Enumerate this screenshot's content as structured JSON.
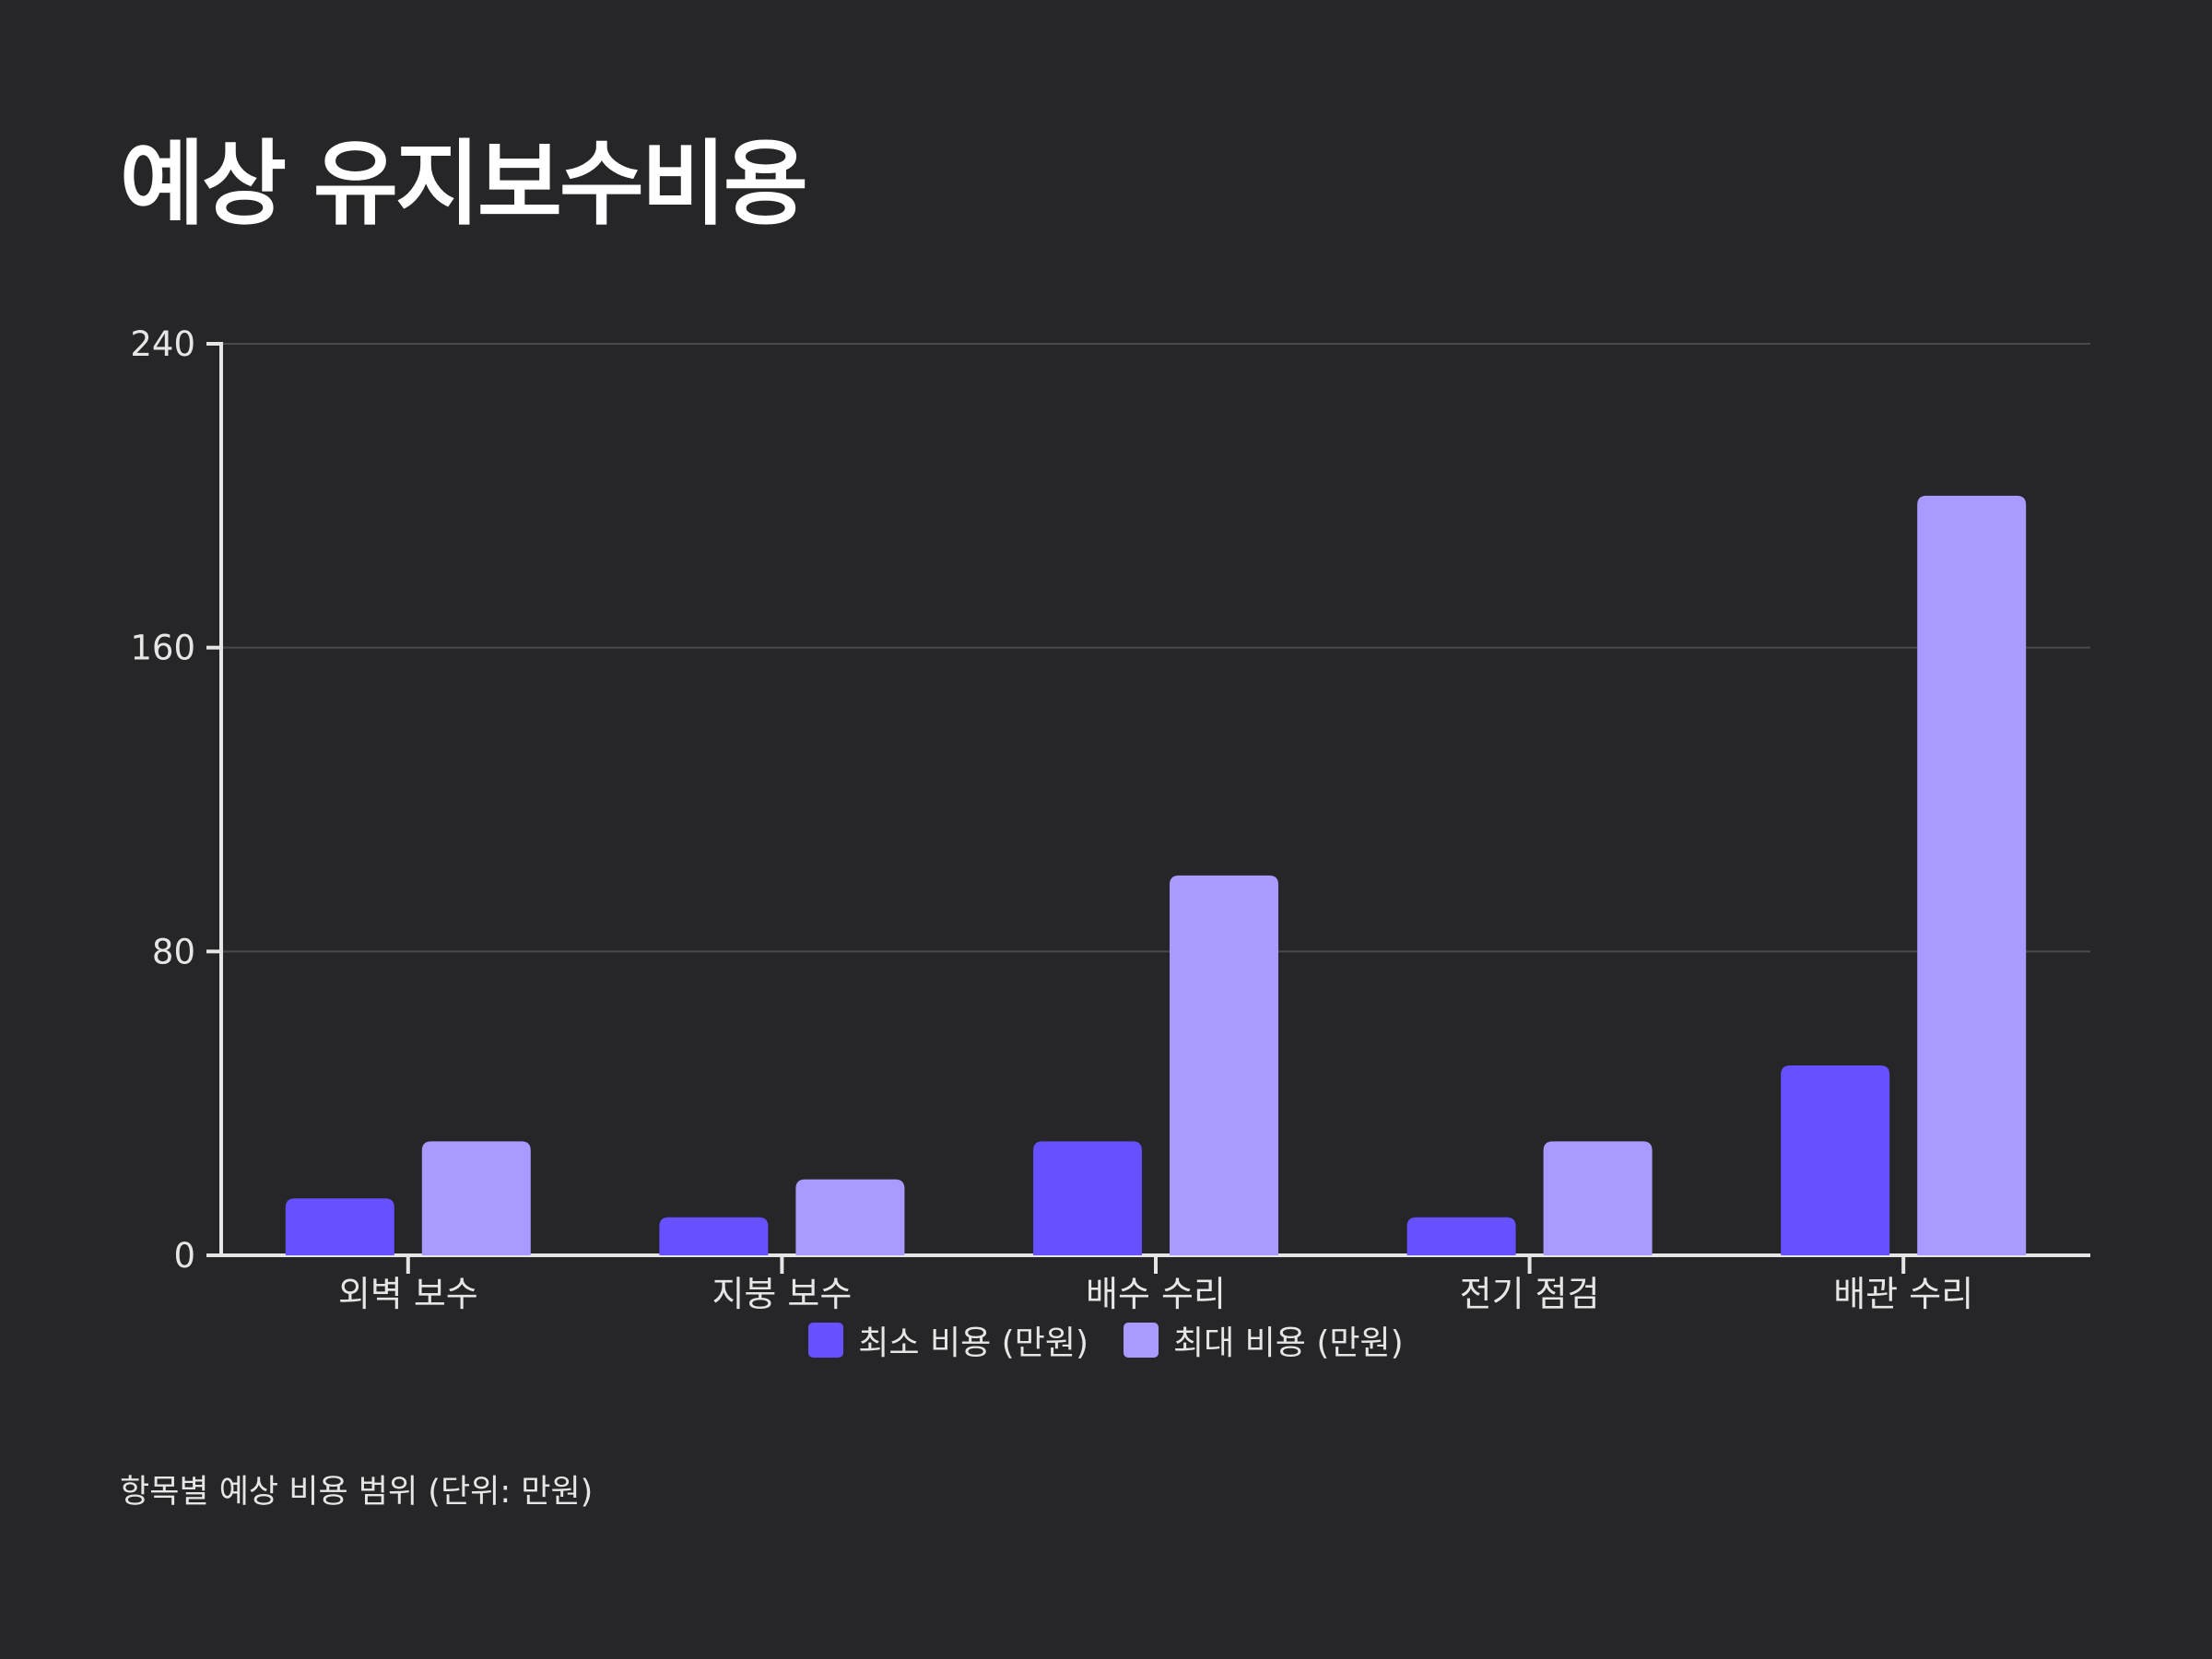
{
  "title": "예상 유지보수비용",
  "caption": "항목별 예상 비용 범위 (단위: 만원)",
  "colors": {
    "background": "#262527",
    "min_series": "#6750ff",
    "max_series": "#a89aff",
    "grid": "#4a494b",
    "axis": "#e6e6e6"
  },
  "chart_data": {
    "type": "bar",
    "categories": [
      "외벽 보수",
      "지붕 보수",
      "배수 수리",
      "전기 점검",
      "배관 수리"
    ],
    "series": [
      {
        "name": "최소 비용 (만원)",
        "values": [
          15,
          10,
          30,
          10,
          50
        ]
      },
      {
        "name": "최대 비용 (만원)",
        "values": [
          30,
          20,
          100,
          30,
          200
        ]
      }
    ],
    "ylim": [
      0,
      240
    ],
    "yticks": [
      0,
      80,
      160,
      240
    ],
    "grid": true,
    "legend": "bottom-center",
    "title": "예상 유지보수비용",
    "xlabel": "",
    "ylabel": ""
  }
}
